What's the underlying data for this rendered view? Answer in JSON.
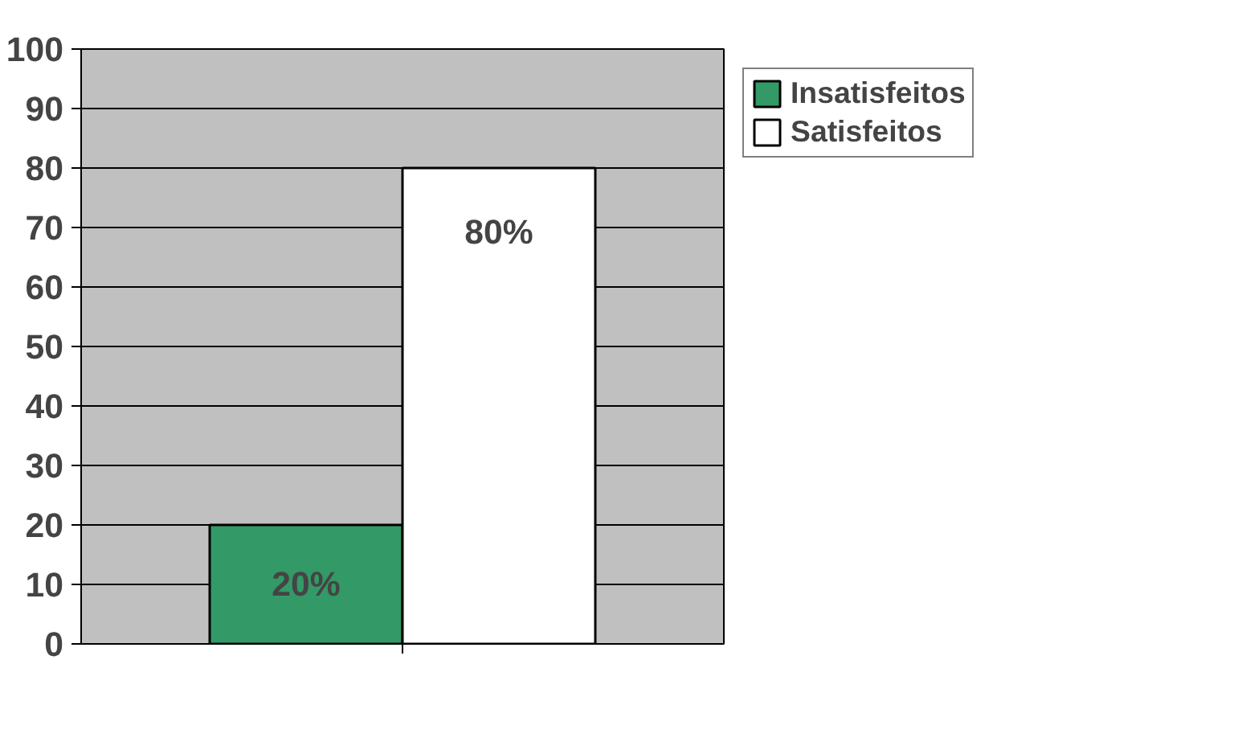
{
  "chart_data": {
    "type": "bar",
    "categories": [
      null
    ],
    "series": [
      {
        "name": "Insatisfeitos",
        "color": "#339966",
        "values": [
          20
        ],
        "value_labels": [
          "20%"
        ]
      },
      {
        "name": "Satisfeitos",
        "color": "#ffffff",
        "values": [
          80
        ],
        "value_labels": [
          "80%"
        ]
      }
    ],
    "ylim": [
      0,
      100
    ],
    "yticks": [
      0,
      10,
      20,
      30,
      40,
      50,
      60,
      70,
      80,
      90,
      100
    ],
    "grid": "y",
    "legend": "right"
  }
}
